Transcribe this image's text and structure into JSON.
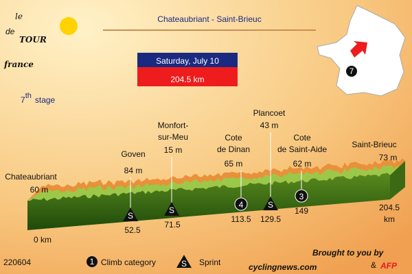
{
  "logo": {
    "le": "le",
    "tour": "TOUR",
    "de": "de",
    "france": "france"
  },
  "title": "Chateaubriant - Saint-Brieuc",
  "date": "Saturday, July 10",
  "distance": "204.5 km",
  "stage": {
    "number": "7",
    "suffix": "th",
    "label": "stage"
  },
  "map_marker": "7",
  "points": [
    {
      "name": [
        "Chateaubriant"
      ],
      "altitude": "60 m",
      "km": [
        "0 km"
      ]
    },
    {
      "name": [
        "Goven"
      ],
      "altitude": "84 m",
      "km": [
        "52.5"
      ],
      "marker": "S"
    },
    {
      "name": [
        "Monfort-",
        "sur-Meu"
      ],
      "altitude": "15 m",
      "km": [
        "71.5"
      ],
      "marker": "S"
    },
    {
      "name": [
        "Cote",
        "de Dinan"
      ],
      "altitude": "65 m",
      "km": [
        "113.5"
      ],
      "marker": "4"
    },
    {
      "name": [
        "Plancoet"
      ],
      "altitude": "43 m",
      "km": [
        "129.5"
      ],
      "marker": "S"
    },
    {
      "name": [
        "Cote",
        "de Saint-Aide"
      ],
      "altitude": "62 m",
      "km": [
        "149"
      ],
      "marker": "3"
    },
    {
      "name": [
        "Saint-Brieuc"
      ],
      "altitude": "73 m",
      "km": [
        "204.5",
        "km"
      ]
    }
  ],
  "legend": {
    "climb_symbol": "1",
    "climb": "Climb category",
    "sprint_symbol": "S",
    "sprint": "Sprint"
  },
  "footer": {
    "code": "220604",
    "brought": "Brought to you by",
    "site": "cyclingnews.com",
    "amp": "&",
    "afp": "AFP"
  }
}
